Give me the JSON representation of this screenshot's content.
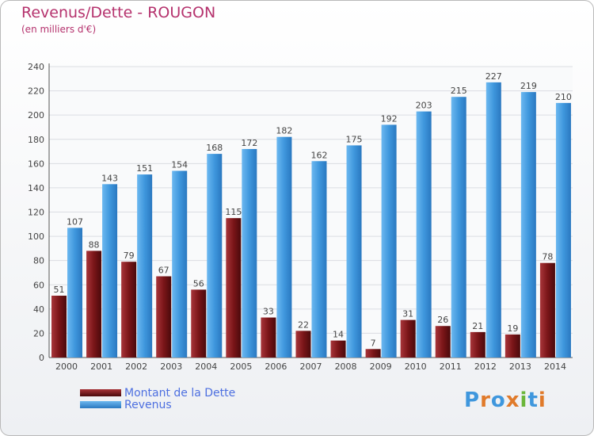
{
  "chart_data": {
    "type": "bar",
    "title": "Revenus/Dette - ROUGON",
    "subtitle": "(en milliers d'€)",
    "categories": [
      "2000",
      "2001",
      "2002",
      "2003",
      "2004",
      "2005",
      "2006",
      "2007",
      "2008",
      "2009",
      "2010",
      "2011",
      "2012",
      "2013",
      "2014"
    ],
    "series": [
      {
        "name": "Montant de la Dette",
        "color": "#7a1518",
        "values": [
          51,
          88,
          79,
          67,
          56,
          115,
          33,
          22,
          14,
          7,
          31,
          26,
          21,
          19,
          78
        ]
      },
      {
        "name": "Revenus",
        "color": "#3f97dd",
        "values": [
          107,
          143,
          151,
          154,
          168,
          172,
          182,
          162,
          175,
          192,
          203,
          215,
          227,
          219,
          210
        ]
      }
    ],
    "ylim": [
      0,
      240
    ],
    "yticks": [
      0,
      20,
      40,
      60,
      80,
      100,
      120,
      140,
      160,
      180,
      200,
      220,
      240
    ],
    "grid": true,
    "legend_position": "bottom-left"
  },
  "logo_text": "Proxiti"
}
